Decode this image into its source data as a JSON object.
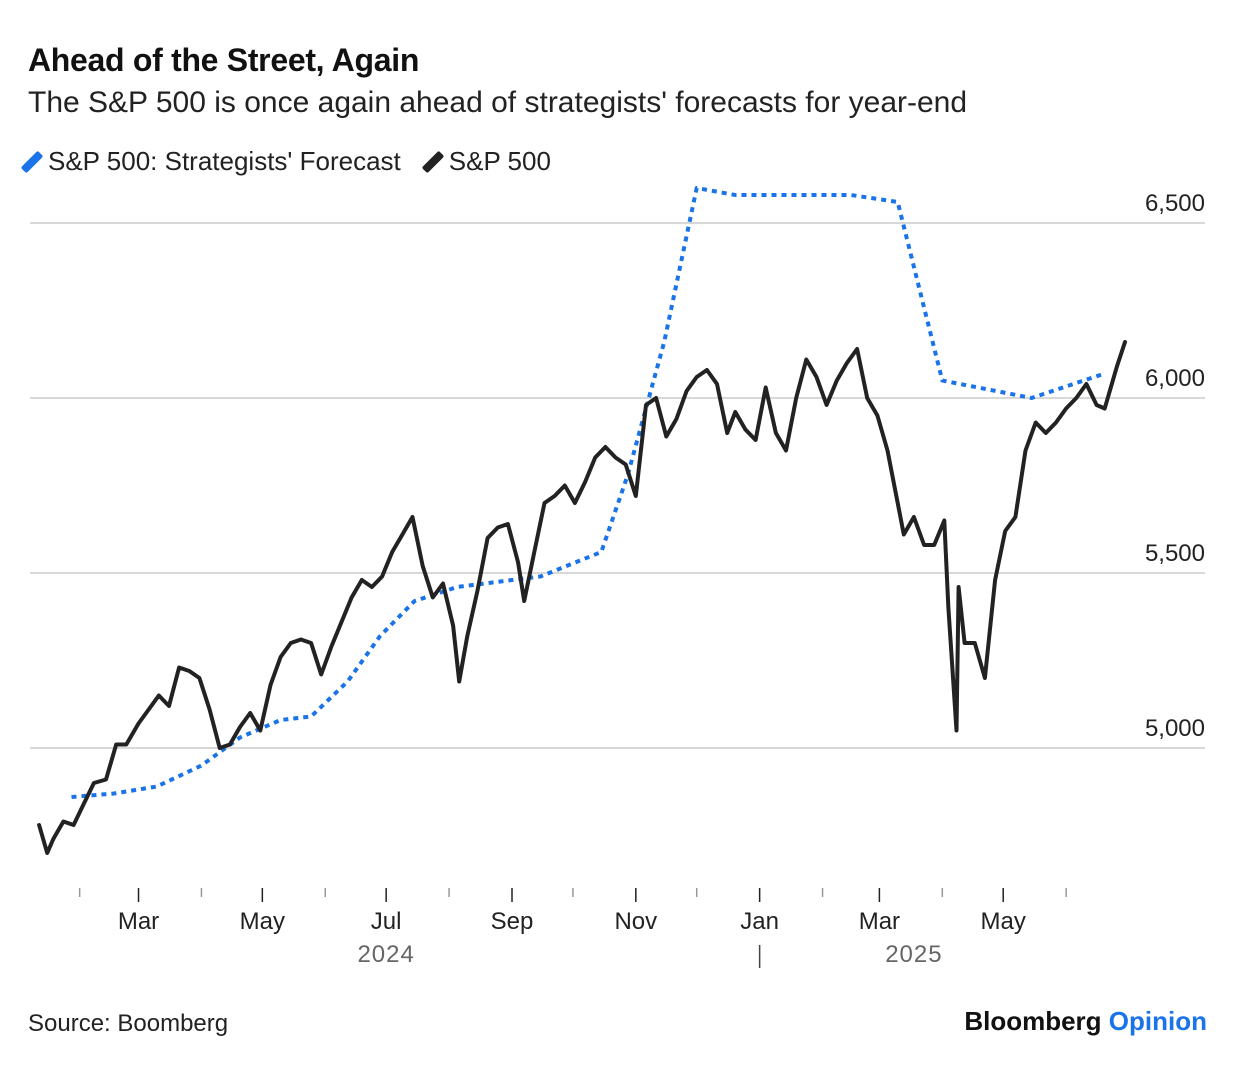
{
  "title": "Ahead of the Street, Again",
  "subtitle": "The S&P 500 is once again ahead of strategists' forecasts for year-end",
  "source": "Source: Boomberg",
  "brand": {
    "name": "Bloomberg",
    "suffix": "Opinion"
  },
  "colors": {
    "forecast": "#1a73e8",
    "index": "#222222",
    "grid": "#cccccc",
    "brand_accent": "#1a73e8"
  },
  "chart_data": {
    "type": "line",
    "x_unit": "month",
    "xlim": [
      "2024-01-10",
      "2025-06-30"
    ],
    "ylim": [
      4650,
      6650
    ],
    "y_ticks": [
      5000,
      5500,
      6000,
      6500
    ],
    "y_tick_labels": [
      "5,000",
      "5,500",
      "6,000",
      "6,500"
    ],
    "x_ticks": [
      "2024-03-01",
      "2024-05-01",
      "2024-07-01",
      "2024-09-01",
      "2024-11-01",
      "2025-01-01",
      "2025-03-01",
      "2025-05-01"
    ],
    "x_tick_labels": [
      "Mar",
      "May",
      "Jul",
      "Sep",
      "Nov",
      "Jan",
      "Mar",
      "May"
    ],
    "year_labels": [
      {
        "label": "2024",
        "at": "2024-07-01"
      },
      {
        "label": "2025",
        "at": "2025-03-18"
      }
    ],
    "legend": "top-left",
    "grid": "horizontal",
    "series": [
      {
        "name": "S&P 500: Strategists' Forecast",
        "style": "dotted",
        "x": [
          "2024-01-28",
          "2024-02-18",
          "2024-03-10",
          "2024-04-01",
          "2024-04-20",
          "2024-05-10",
          "2024-05-25",
          "2024-06-12",
          "2024-06-28",
          "2024-07-15",
          "2024-08-05",
          "2024-09-01",
          "2024-09-15",
          "2024-10-15",
          "2024-10-28",
          "2024-11-15",
          "2024-12-01",
          "2024-12-20",
          "2025-01-20",
          "2025-02-15",
          "2025-03-10",
          "2025-04-01",
          "2025-05-15",
          "2025-06-20"
        ],
        "y": [
          4860,
          4870,
          4890,
          4950,
          5030,
          5080,
          5090,
          5190,
          5320,
          5420,
          5460,
          5480,
          5490,
          5560,
          5780,
          6160,
          6600,
          6580,
          6580,
          6580,
          6560,
          6050,
          6000,
          6070
        ]
      },
      {
        "name": "S&P 500",
        "style": "solid",
        "x": [
          "2024-01-12",
          "2024-01-16",
          "2024-01-19",
          "2024-01-24",
          "2024-01-29",
          "2024-02-03",
          "2024-02-08",
          "2024-02-14",
          "2024-02-19",
          "2024-02-24",
          "2024-03-01",
          "2024-03-06",
          "2024-03-11",
          "2024-03-16",
          "2024-03-21",
          "2024-03-26",
          "2024-03-31",
          "2024-04-05",
          "2024-04-10",
          "2024-04-15",
          "2024-04-20",
          "2024-04-25",
          "2024-04-30",
          "2024-05-05",
          "2024-05-10",
          "2024-05-15",
          "2024-05-20",
          "2024-05-25",
          "2024-05-30",
          "2024-06-04",
          "2024-06-09",
          "2024-06-14",
          "2024-06-19",
          "2024-06-24",
          "2024-06-29",
          "2024-07-04",
          "2024-07-09",
          "2024-07-14",
          "2024-07-19",
          "2024-07-24",
          "2024-07-29",
          "2024-08-03",
          "2024-08-06",
          "2024-08-10",
          "2024-08-15",
          "2024-08-20",
          "2024-08-25",
          "2024-08-30",
          "2024-09-04",
          "2024-09-07",
          "2024-09-12",
          "2024-09-17",
          "2024-09-22",
          "2024-09-27",
          "2024-10-02",
          "2024-10-07",
          "2024-10-12",
          "2024-10-17",
          "2024-10-22",
          "2024-10-27",
          "2024-11-01",
          "2024-11-06",
          "2024-11-11",
          "2024-11-16",
          "2024-11-21",
          "2024-11-26",
          "2024-12-01",
          "2024-12-06",
          "2024-12-11",
          "2024-12-16",
          "2024-12-20",
          "2024-12-25",
          "2024-12-30",
          "2025-01-04",
          "2025-01-09",
          "2025-01-14",
          "2025-01-19",
          "2025-01-24",
          "2025-01-29",
          "2025-02-03",
          "2025-02-08",
          "2025-02-13",
          "2025-02-18",
          "2025-02-23",
          "2025-02-28",
          "2025-03-05",
          "2025-03-10",
          "2025-03-13",
          "2025-03-18",
          "2025-03-23",
          "2025-03-28",
          "2025-04-02",
          "2025-04-04",
          "2025-04-08",
          "2025-04-09",
          "2025-04-12",
          "2025-04-17",
          "2025-04-22",
          "2025-04-27",
          "2025-05-02",
          "2025-05-07",
          "2025-05-12",
          "2025-05-17",
          "2025-05-22",
          "2025-05-27",
          "2025-06-01",
          "2025-06-06",
          "2025-06-11",
          "2025-06-16",
          "2025-06-20",
          "2025-06-26",
          "2025-06-30"
        ],
        "y": [
          4780,
          4700,
          4740,
          4790,
          4780,
          4840,
          4900,
          4910,
          5010,
          5010,
          5070,
          5110,
          5150,
          5120,
          5230,
          5220,
          5200,
          5110,
          5000,
          5010,
          5060,
          5100,
          5050,
          5180,
          5260,
          5300,
          5310,
          5300,
          5210,
          5290,
          5360,
          5430,
          5480,
          5460,
          5490,
          5560,
          5610,
          5660,
          5520,
          5430,
          5470,
          5350,
          5190,
          5320,
          5450,
          5600,
          5630,
          5640,
          5530,
          5420,
          5560,
          5700,
          5720,
          5750,
          5700,
          5760,
          5830,
          5860,
          5830,
          5810,
          5720,
          5980,
          6000,
          5890,
          5940,
          6020,
          6060,
          6080,
          6040,
          5900,
          5960,
          5910,
          5880,
          6030,
          5900,
          5850,
          6000,
          6110,
          6060,
          5980,
          6050,
          6100,
          6140,
          6000,
          5950,
          5850,
          5700,
          5610,
          5660,
          5580,
          5580,
          5650,
          5400,
          5050,
          5460,
          5300,
          5300,
          5200,
          5480,
          5620,
          5660,
          5850,
          5930,
          5900,
          5930,
          5970,
          6000,
          6040,
          5980,
          5970,
          6090,
          6160
        ]
      }
    ]
  }
}
